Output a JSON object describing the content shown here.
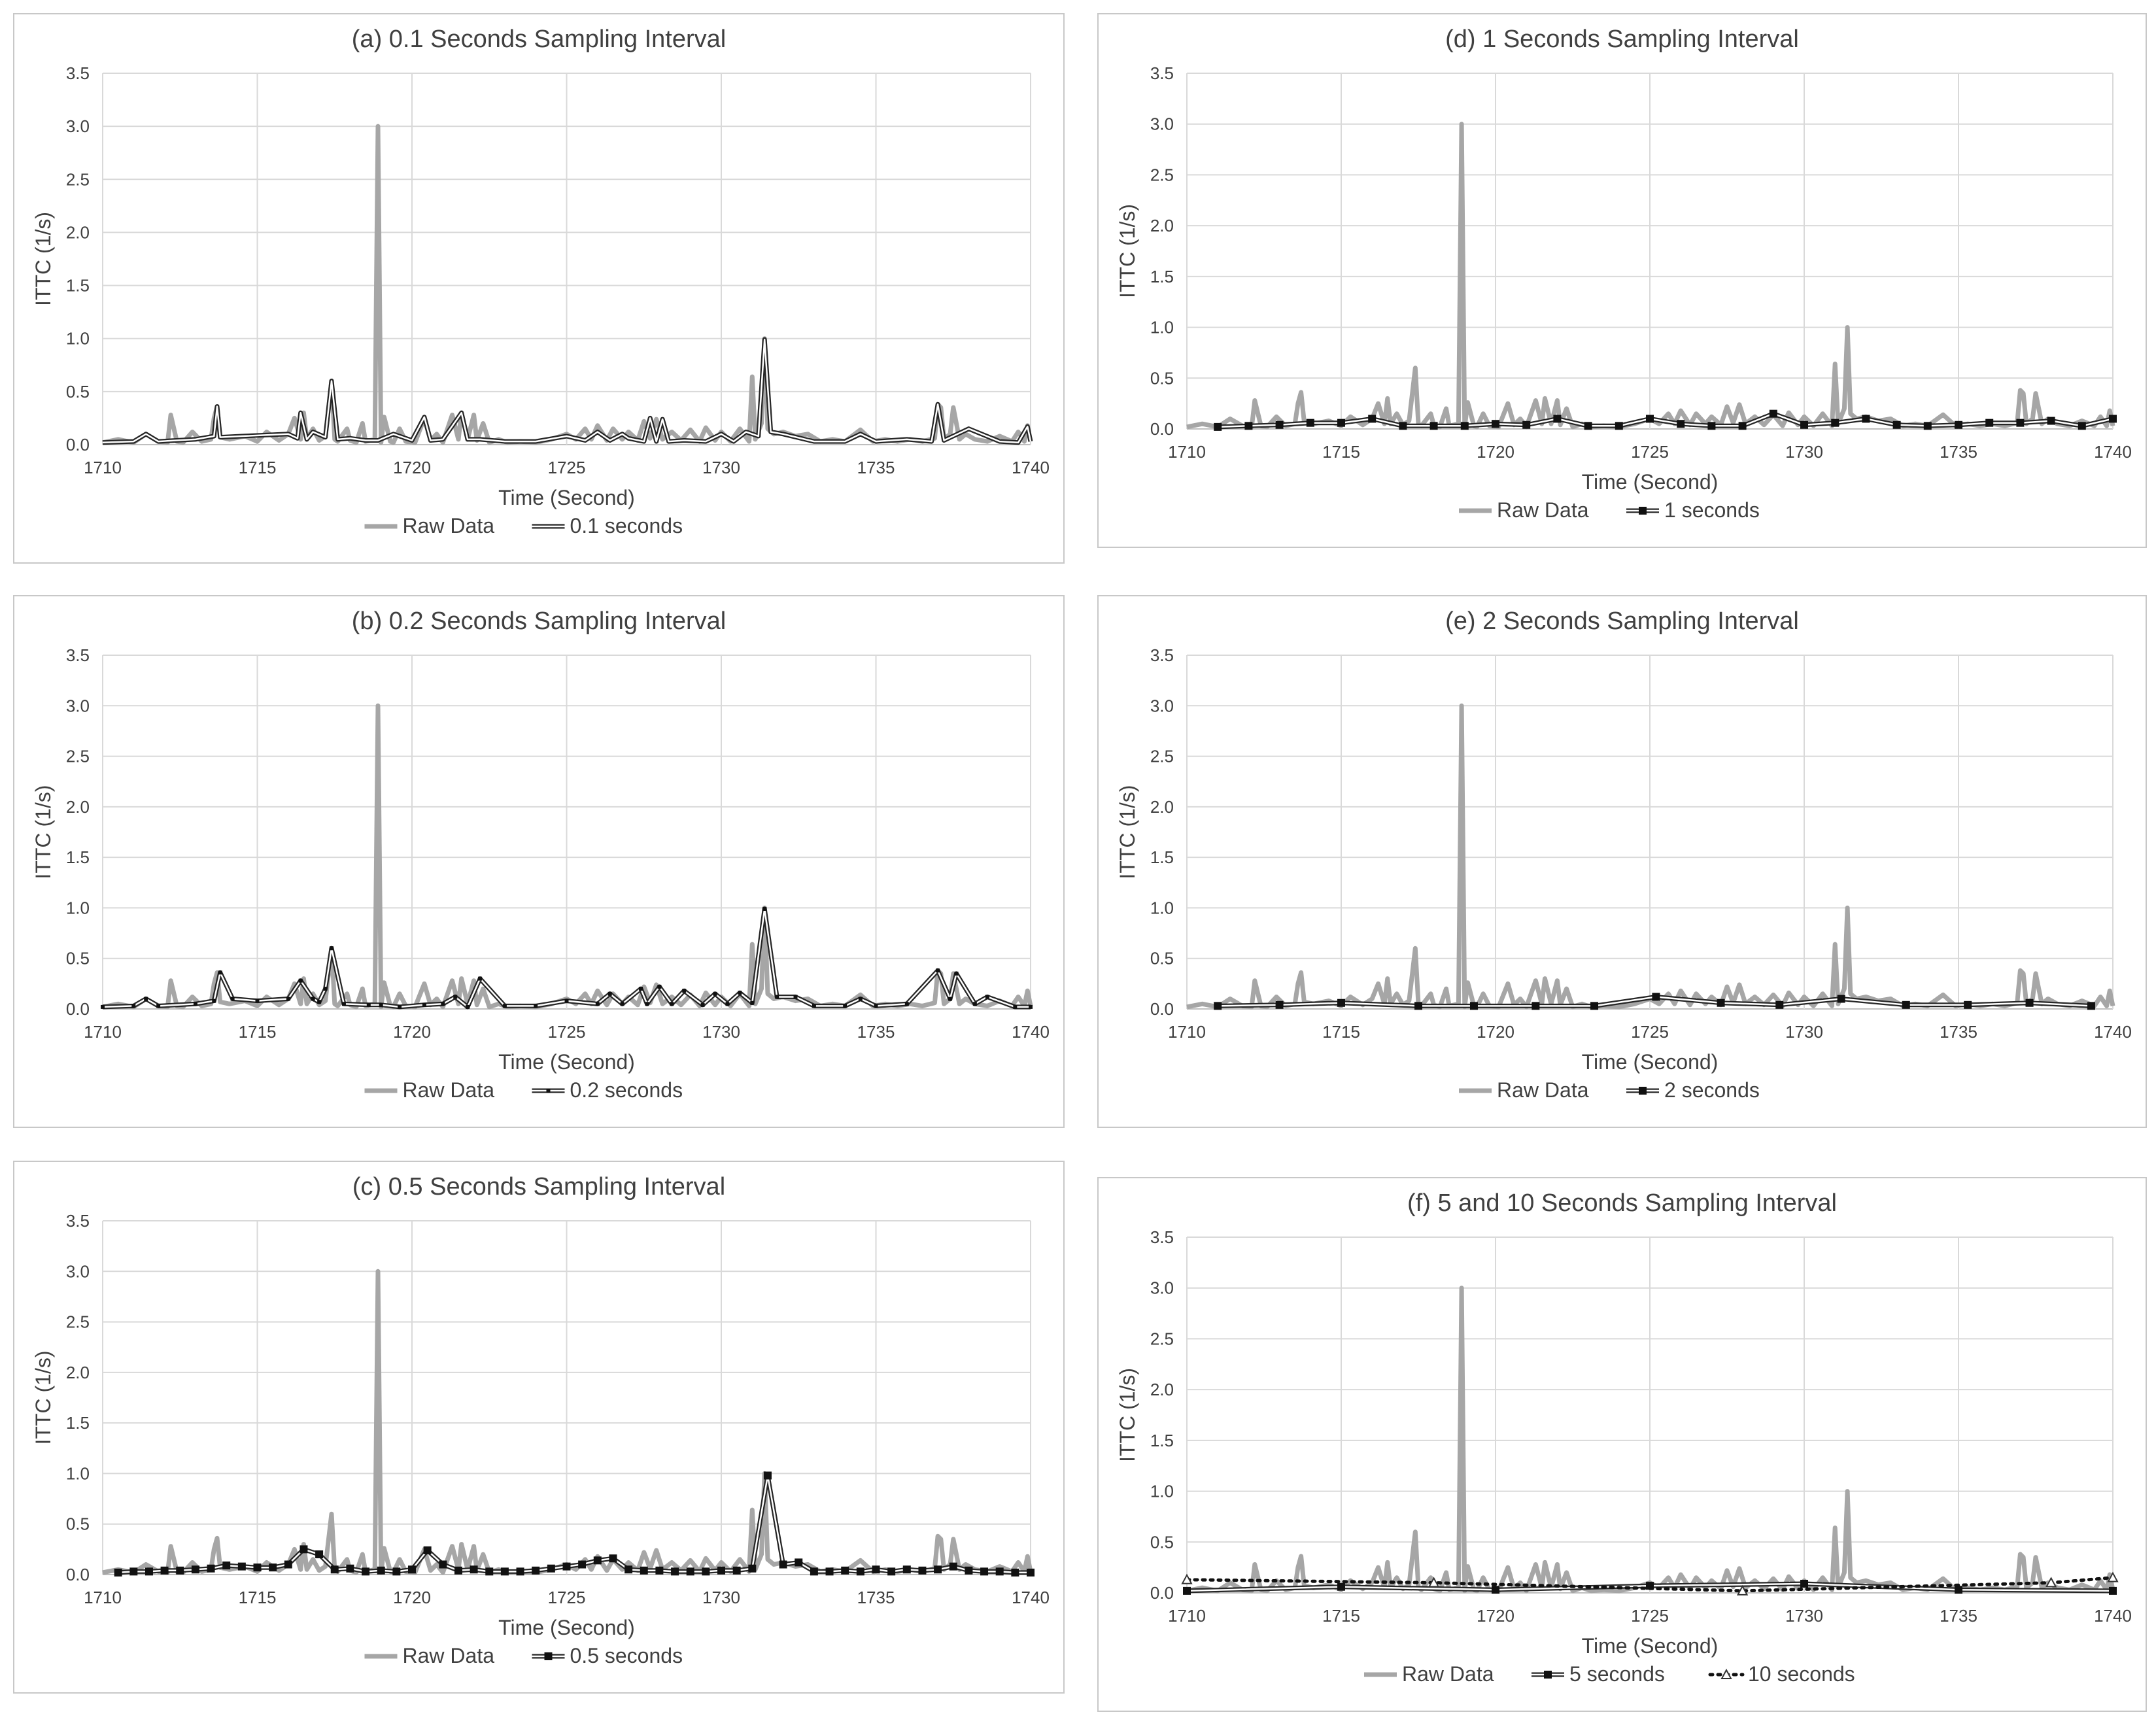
{
  "figure": {
    "y_axis_label": "ITTC (1/s)",
    "x_axis_label": "Time (Second)"
  },
  "colors": {
    "raw": "#a6a6a6",
    "processed": "#262626",
    "grid": "#d9d9d9",
    "axis": "#595959",
    "text": "#404040"
  },
  "chart_data": [
    {
      "id": "a",
      "type": "line",
      "title": "(a) 0.1 Seconds Sampling Interval",
      "xlabel": "Time (Second)",
      "ylabel": "ITTC (1/s)",
      "xlim": [
        1710,
        1740
      ],
      "ylim": [
        0,
        3.5
      ],
      "x_ticks": [
        "1710",
        "1715",
        "1720",
        "1725",
        "1730",
        "1735",
        "1740"
      ],
      "y_ticks": [
        "0.0",
        "0.5",
        "1.0",
        "1.5",
        "2.0",
        "2.5",
        "3.0",
        "3.5"
      ],
      "series": [
        {
          "name": "Raw Data",
          "style": "raw"
        },
        {
          "name": "0.1 seconds",
          "style": "double",
          "marker": "none",
          "x": [
            1710,
            1711,
            1711.4,
            1711.8,
            1713,
            1713.6,
            1713.7,
            1713.8,
            1714.5,
            1716,
            1716.3,
            1716.4,
            1716.6,
            1716.8,
            1717.2,
            1717.4,
            1717.6,
            1718,
            1718.5,
            1718.9,
            1719.4,
            1720,
            1720.4,
            1720.6,
            1721,
            1721.6,
            1721.8,
            1722.2,
            1723,
            1724,
            1725,
            1725.6,
            1726,
            1726.4,
            1726.8,
            1727,
            1727.5,
            1727.7,
            1727.9,
            1728.1,
            1728.3,
            1728.8,
            1729.5,
            1730,
            1730.4,
            1730.8,
            1731.2,
            1731.4,
            1731.6,
            1732,
            1733,
            1734,
            1734.5,
            1735,
            1736,
            1736.8,
            1737,
            1737.2,
            1738,
            1739,
            1739.6,
            1739.9,
            1740
          ],
          "y": [
            0.02,
            0.03,
            0.1,
            0.03,
            0.05,
            0.08,
            0.36,
            0.07,
            0.08,
            0.1,
            0.06,
            0.3,
            0.05,
            0.12,
            0.07,
            0.6,
            0.05,
            0.06,
            0.04,
            0.04,
            0.1,
            0.04,
            0.26,
            0.04,
            0.05,
            0.3,
            0.05,
            0.05,
            0.03,
            0.03,
            0.08,
            0.04,
            0.12,
            0.04,
            0.1,
            0.06,
            0.03,
            0.25,
            0.03,
            0.24,
            0.03,
            0.04,
            0.03,
            0.1,
            0.03,
            0.12,
            0.08,
            0.99,
            0.12,
            0.1,
            0.03,
            0.03,
            0.1,
            0.03,
            0.05,
            0.03,
            0.38,
            0.04,
            0.15,
            0.03,
            0.02,
            0.17,
            0.03
          ]
        }
      ]
    },
    {
      "id": "b",
      "type": "line",
      "title": "(b) 0.2 Seconds Sampling Interval",
      "xlabel": "Time (Second)",
      "ylabel": "ITTC (1/s)",
      "xlim": [
        1710,
        1740
      ],
      "ylim": [
        0,
        3.5
      ],
      "x_ticks": [
        "1710",
        "1715",
        "1720",
        "1725",
        "1730",
        "1735",
        "1740"
      ],
      "y_ticks": [
        "0.0",
        "0.5",
        "1.0",
        "1.5",
        "2.0",
        "2.5",
        "3.0",
        "3.5"
      ],
      "series": [
        {
          "name": "Raw Data",
          "style": "raw"
        },
        {
          "name": "0.2 seconds",
          "style": "double",
          "marker": "small",
          "x": [
            1710,
            1711,
            1711.4,
            1711.8,
            1713,
            1713.6,
            1713.8,
            1714.2,
            1715,
            1716,
            1716.4,
            1716.8,
            1717,
            1717.2,
            1717.4,
            1717.8,
            1718.6,
            1719,
            1719.6,
            1720.4,
            1721,
            1721.4,
            1721.8,
            1722.2,
            1723,
            1724,
            1725,
            1726,
            1726.4,
            1726.8,
            1727.4,
            1727.6,
            1728,
            1728.4,
            1728.8,
            1729.4,
            1729.8,
            1730.2,
            1730.6,
            1731,
            1731.4,
            1731.8,
            1732.4,
            1733,
            1734,
            1734.5,
            1735,
            1736,
            1737,
            1737.4,
            1737.6,
            1738.2,
            1738.6,
            1739.5,
            1740
          ],
          "y": [
            0.02,
            0.03,
            0.1,
            0.03,
            0.05,
            0.08,
            0.36,
            0.1,
            0.08,
            0.1,
            0.28,
            0.1,
            0.07,
            0.2,
            0.6,
            0.05,
            0.04,
            0.04,
            0.02,
            0.04,
            0.05,
            0.12,
            0.02,
            0.3,
            0.03,
            0.03,
            0.08,
            0.05,
            0.15,
            0.05,
            0.2,
            0.05,
            0.22,
            0.05,
            0.18,
            0.04,
            0.15,
            0.05,
            0.16,
            0.06,
            0.99,
            0.12,
            0.12,
            0.03,
            0.03,
            0.1,
            0.03,
            0.05,
            0.38,
            0.1,
            0.35,
            0.05,
            0.12,
            0.02,
            0.02
          ]
        }
      ]
    },
    {
      "id": "c",
      "type": "line",
      "title": "(c) 0.5 Seconds Sampling Interval",
      "xlabel": "Time (Second)",
      "ylabel": "ITTC (1/s)",
      "xlim": [
        1710,
        1740
      ],
      "ylim": [
        0,
        3.5
      ],
      "x_ticks": [
        "1710",
        "1715",
        "1720",
        "1725",
        "1730",
        "1735",
        "1740"
      ],
      "y_ticks": [
        "0.0",
        "0.5",
        "1.0",
        "1.5",
        "2.0",
        "2.5",
        "3.0",
        "3.5"
      ],
      "series": [
        {
          "name": "Raw Data",
          "style": "raw"
        },
        {
          "name": "0.5 seconds",
          "style": "double",
          "marker": "square",
          "x": [
            1710.5,
            1711,
            1711.5,
            1712,
            1712.5,
            1713,
            1713.5,
            1714,
            1714.5,
            1715,
            1715.5,
            1716,
            1716.5,
            1717,
            1717.5,
            1718,
            1718.5,
            1719,
            1719.5,
            1720,
            1720.5,
            1721,
            1721.5,
            1722,
            1722.5,
            1723,
            1723.5,
            1724,
            1724.5,
            1725,
            1725.5,
            1726,
            1726.5,
            1727,
            1727.5,
            1728,
            1728.5,
            1729,
            1729.5,
            1730,
            1730.5,
            1731,
            1731.5,
            1732,
            1732.5,
            1733,
            1733.5,
            1734,
            1734.5,
            1735,
            1735.5,
            1736,
            1736.5,
            1737,
            1737.5,
            1738,
            1738.5,
            1739,
            1739.5,
            1740
          ],
          "y": [
            0.02,
            0.03,
            0.03,
            0.04,
            0.04,
            0.05,
            0.06,
            0.09,
            0.08,
            0.07,
            0.07,
            0.1,
            0.25,
            0.2,
            0.05,
            0.06,
            0.03,
            0.04,
            0.03,
            0.05,
            0.24,
            0.1,
            0.04,
            0.05,
            0.03,
            0.03,
            0.03,
            0.04,
            0.06,
            0.08,
            0.1,
            0.14,
            0.16,
            0.05,
            0.04,
            0.04,
            0.03,
            0.03,
            0.03,
            0.04,
            0.04,
            0.06,
            0.98,
            0.1,
            0.12,
            0.03,
            0.03,
            0.04,
            0.03,
            0.05,
            0.03,
            0.05,
            0.04,
            0.05,
            0.08,
            0.04,
            0.03,
            0.03,
            0.02,
            0.02
          ]
        }
      ]
    },
    {
      "id": "d",
      "type": "line",
      "title": "(d) 1 Seconds Sampling Interval",
      "xlabel": "Time (Second)",
      "ylabel": "ITTC (1/s)",
      "xlim": [
        1710,
        1740
      ],
      "ylim": [
        0,
        3.5
      ],
      "x_ticks": [
        "1710",
        "1715",
        "1720",
        "1725",
        "1730",
        "1735",
        "1740"
      ],
      "y_ticks": [
        "0.0",
        "0.5",
        "1.0",
        "1.5",
        "2.0",
        "2.5",
        "3.0",
        "3.5"
      ],
      "series": [
        {
          "name": "Raw Data",
          "style": "raw"
        },
        {
          "name": "1 seconds",
          "style": "double",
          "marker": "square",
          "x": [
            1711,
            1712,
            1713,
            1714,
            1715,
            1716,
            1717,
            1718,
            1719,
            1720,
            1721,
            1722,
            1723,
            1724,
            1725,
            1726,
            1727,
            1728,
            1729,
            1730,
            1731,
            1732,
            1733,
            1734,
            1735,
            1736,
            1737,
            1738,
            1739,
            1740
          ],
          "y": [
            0.02,
            0.03,
            0.04,
            0.06,
            0.06,
            0.1,
            0.03,
            0.03,
            0.03,
            0.05,
            0.04,
            0.1,
            0.03,
            0.03,
            0.1,
            0.05,
            0.03,
            0.03,
            0.15,
            0.04,
            0.06,
            0.1,
            0.04,
            0.03,
            0.04,
            0.06,
            0.06,
            0.08,
            0.03,
            0.1
          ]
        }
      ]
    },
    {
      "id": "e",
      "type": "line",
      "title": "(e) 2 Seconds Sampling Interval",
      "xlabel": "Time (Second)",
      "ylabel": "ITTC (1/s)",
      "xlim": [
        1710,
        1740
      ],
      "ylim": [
        0,
        3.5
      ],
      "x_ticks": [
        "1710",
        "1715",
        "1720",
        "1725",
        "1730",
        "1735",
        "1740"
      ],
      "y_ticks": [
        "0.0",
        "0.5",
        "1.0",
        "1.5",
        "2.0",
        "2.5",
        "3.0",
        "3.5"
      ],
      "series": [
        {
          "name": "Raw Data",
          "style": "raw"
        },
        {
          "name": "2 seconds",
          "style": "double",
          "marker": "square",
          "x": [
            1711,
            1713,
            1715,
            1717.5,
            1719.3,
            1721.3,
            1723.2,
            1725.2,
            1727.3,
            1729.2,
            1731.2,
            1733.3,
            1735.3,
            1737.3,
            1739.3
          ],
          "y": [
            0.03,
            0.04,
            0.06,
            0.03,
            0.03,
            0.03,
            0.03,
            0.12,
            0.06,
            0.04,
            0.1,
            0.04,
            0.04,
            0.06,
            0.03
          ]
        }
      ]
    },
    {
      "id": "f",
      "type": "line",
      "title": "(f) 5 and 10 Seconds Sampling Interval",
      "xlabel": "Time (Second)",
      "ylabel": "ITTC (1/s)",
      "xlim": [
        1710,
        1740
      ],
      "ylim": [
        0,
        3.5
      ],
      "x_ticks": [
        "1710",
        "1715",
        "1720",
        "1725",
        "1730",
        "1735",
        "1740"
      ],
      "y_ticks": [
        "0.0",
        "0.5",
        "1.0",
        "1.5",
        "2.0",
        "2.5",
        "3.0",
        "3.5"
      ],
      "series": [
        {
          "name": "Raw Data",
          "style": "raw"
        },
        {
          "name": "5 seconds",
          "style": "double",
          "marker": "square",
          "x": [
            1710,
            1715,
            1720,
            1725,
            1730,
            1735,
            1740
          ],
          "y": [
            0.02,
            0.06,
            0.03,
            0.07,
            0.09,
            0.03,
            0.02
          ]
        },
        {
          "name": "10 seconds",
          "style": "dotted",
          "marker": "triangle",
          "x": [
            1710,
            1718,
            1728,
            1738,
            1740
          ],
          "y": [
            0.13,
            0.1,
            0.02,
            0.1,
            0.15
          ]
        }
      ]
    }
  ],
  "raw_data": {
    "name": "Raw Data",
    "x": [
      1710,
      1710.5,
      1711,
      1711.4,
      1711.8,
      1712.1,
      1712.2,
      1712.4,
      1712.6,
      1712.9,
      1713.2,
      1713.5,
      1713.6,
      1713.7,
      1713.8,
      1714.1,
      1714.6,
      1715,
      1715.3,
      1715.7,
      1716,
      1716.2,
      1716.4,
      1716.5,
      1716.6,
      1716.8,
      1717,
      1717.2,
      1717.4,
      1717.5,
      1717.6,
      1717.9,
      1718,
      1718.2,
      1718.4,
      1718.5,
      1718.8,
      1718.9,
      1719,
      1719.1,
      1719.3,
      1719.4,
      1719.6,
      1719.8,
      1720.1,
      1720.4,
      1720.6,
      1720.8,
      1721,
      1721.3,
      1721.5,
      1721.6,
      1721.8,
      1722,
      1722.1,
      1722.3,
      1722.5,
      1722.8,
      1723.1,
      1723.5,
      1724,
      1724.5,
      1725,
      1725.3,
      1725.6,
      1725.8,
      1726,
      1726.3,
      1726.5,
      1726.8,
      1727,
      1727.3,
      1727.5,
      1727.7,
      1727.9,
      1728.1,
      1728.4,
      1728.7,
      1729,
      1729.3,
      1729.5,
      1729.8,
      1730,
      1730.3,
      1730.6,
      1730.9,
      1731,
      1731.1,
      1731.3,
      1731.4,
      1731.5,
      1731.7,
      1732,
      1732.4,
      1732.8,
      1733.2,
      1733.6,
      1734,
      1734.5,
      1734.9,
      1735.3,
      1735.7,
      1736.1,
      1736.5,
      1736.9,
      1737,
      1737.1,
      1737.2,
      1737.4,
      1737.5,
      1737.7,
      1737.9,
      1738.2,
      1738.6,
      1739,
      1739.4,
      1739.6,
      1739.8,
      1739.9,
      1740
    ],
    "y": [
      0.02,
      0.05,
      0.02,
      0.1,
      0.03,
      0.02,
      0.28,
      0.03,
      0.02,
      0.12,
      0.03,
      0.05,
      0.25,
      0.36,
      0.07,
      0.05,
      0.08,
      0.03,
      0.12,
      0.04,
      0.1,
      0.25,
      0.05,
      0.3,
      0.05,
      0.15,
      0.04,
      0.08,
      0.6,
      0.05,
      0.03,
      0.15,
      0.04,
      0.02,
      0.2,
      0.03,
      0.05,
      3.0,
      0.02,
      0.26,
      0.03,
      0.02,
      0.15,
      0.03,
      0.02,
      0.25,
      0.04,
      0.1,
      0.02,
      0.28,
      0.05,
      0.3,
      0.05,
      0.28,
      0.04,
      0.2,
      0.02,
      0.05,
      0.02,
      0.03,
      0.02,
      0.05,
      0.1,
      0.05,
      0.15,
      0.05,
      0.18,
      0.04,
      0.15,
      0.05,
      0.12,
      0.04,
      0.22,
      0.06,
      0.24,
      0.05,
      0.12,
      0.04,
      0.14,
      0.03,
      0.16,
      0.04,
      0.12,
      0.03,
      0.15,
      0.03,
      0.64,
      0.05,
      0.2,
      1.0,
      0.15,
      0.1,
      0.12,
      0.08,
      0.1,
      0.03,
      0.05,
      0.03,
      0.14,
      0.03,
      0.05,
      0.03,
      0.05,
      0.03,
      0.06,
      0.38,
      0.35,
      0.05,
      0.1,
      0.35,
      0.05,
      0.1,
      0.05,
      0.03,
      0.08,
      0.03,
      0.12,
      0.03,
      0.18,
      0.03
    ]
  }
}
